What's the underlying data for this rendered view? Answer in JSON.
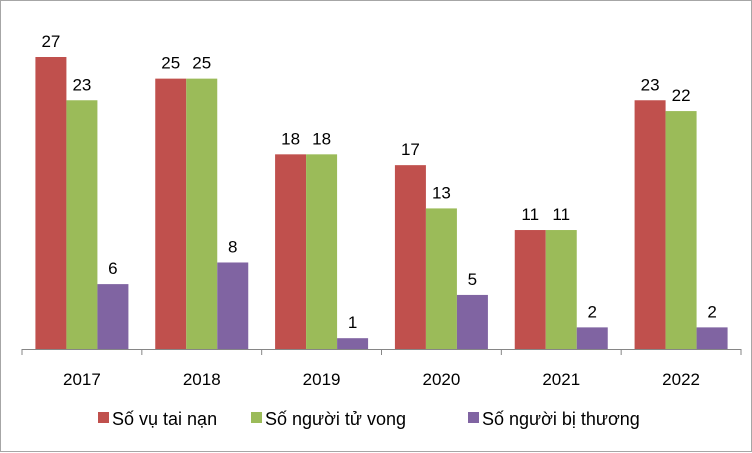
{
  "chart_data": {
    "type": "bar",
    "categories": [
      "2017",
      "2018",
      "2019",
      "2020",
      "2021",
      "2022"
    ],
    "series": [
      {
        "name": "Số vụ tai nạn",
        "values": [
          27,
          25,
          18,
          17,
          11,
          23
        ],
        "color": "#c0504d"
      },
      {
        "name": "Số người tử vong",
        "values": [
          23,
          25,
          18,
          13,
          11,
          22
        ],
        "color": "#9bbb59"
      },
      {
        "name": "Số người bị thương",
        "values": [
          6,
          8,
          1,
          5,
          2,
          2
        ],
        "color": "#8064a2"
      }
    ],
    "ylim": [
      0,
      27
    ],
    "grid": false,
    "legend": "bottom",
    "data_labels": true
  }
}
